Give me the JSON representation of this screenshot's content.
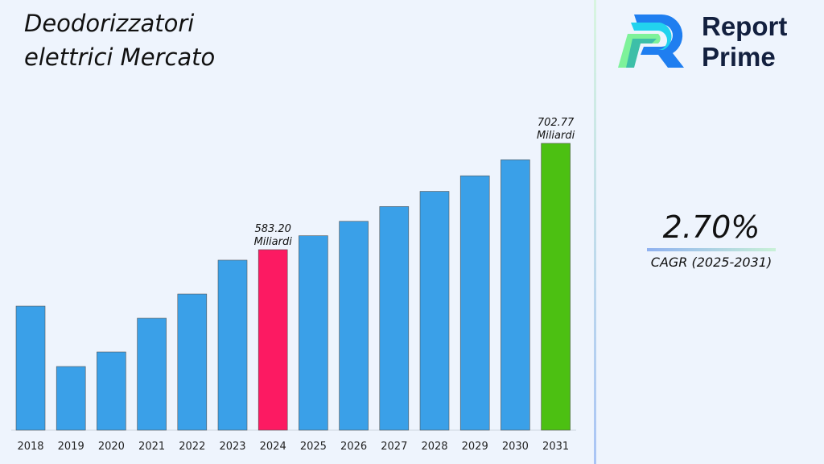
{
  "title": "Deodorizzatori elettrici Mercato",
  "logo": {
    "line1": "Report",
    "line2": "Prime"
  },
  "cagr": {
    "value": "2.70%",
    "label": "CAGR (2025-2031)"
  },
  "chart_data": {
    "type": "bar",
    "title": "Deodorizzatori elettrici Mercato",
    "categories": [
      "2018",
      "2019",
      "2020",
      "2021",
      "2022",
      "2023",
      "2024",
      "2025",
      "2026",
      "2027",
      "2028",
      "2029",
      "2030",
      "2031"
    ],
    "values": [
      519.7,
      451.8,
      468.1,
      506.1,
      533.3,
      571.4,
      583.2,
      598.9,
      615.1,
      631.7,
      648.8,
      666.3,
      684.3,
      702.77
    ],
    "colors": [
      "#3aa0e8",
      "#3aa0e8",
      "#3aa0e8",
      "#3aa0e8",
      "#3aa0e8",
      "#3aa0e8",
      "#fc1a62",
      "#3aa0e8",
      "#3aa0e8",
      "#3aa0e8",
      "#3aa0e8",
      "#3aa0e8",
      "#3aa0e8",
      "#4cc012"
    ],
    "annotations": [
      {
        "category": "2024",
        "value": "583.20",
        "unit": "Miliardi"
      },
      {
        "category": "2031",
        "value": "702.77",
        "unit": "Miliardi"
      }
    ],
    "ylim": [
      380.2,
      720
    ],
    "grid": false,
    "xlabel": "",
    "ylabel": ""
  }
}
